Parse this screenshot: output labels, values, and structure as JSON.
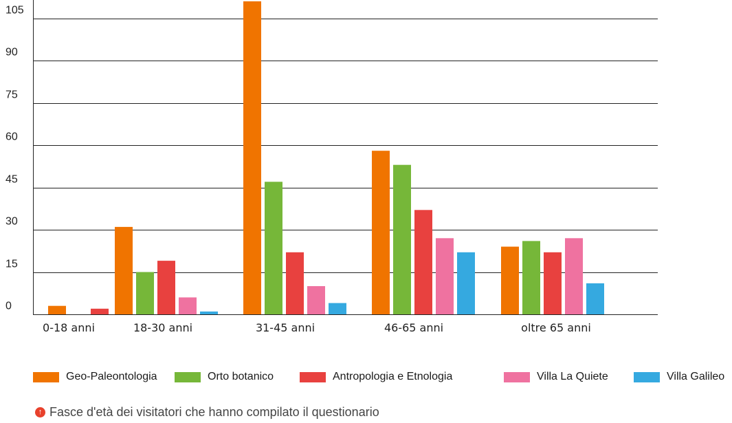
{
  "chart_data": {
    "type": "bar",
    "categories": [
      "0-18 anni",
      "18-30 anni",
      "31-45 anni",
      "46-65 anni",
      "oltre 65 anni"
    ],
    "series": [
      {
        "name": "Geo-Paleontologia",
        "color": "#f07400",
        "values": [
          3,
          31,
          111,
          58,
          24
        ]
      },
      {
        "name": "Orto botanico",
        "color": "#76b739",
        "values": [
          0,
          15,
          47,
          53,
          26
        ]
      },
      {
        "name": "Antropologia e Etnologia",
        "color": "#e8413f",
        "values": [
          2,
          19,
          22,
          37,
          22
        ]
      },
      {
        "name": "Villa La Quiete",
        "color": "#ef72a0",
        "values": [
          0,
          6,
          10,
          27,
          27
        ]
      },
      {
        "name": "Villa Galileo",
        "color": "#35a9e0",
        "values": [
          0,
          1,
          4,
          22,
          11
        ]
      }
    ],
    "yticks": [
      0,
      15,
      30,
      45,
      60,
      75,
      90,
      105
    ],
    "ylim": [
      0,
      111
    ],
    "grid": true,
    "legend_position": "bottom"
  },
  "caption": {
    "icon": "arrow-up-circle-icon",
    "text": "Fasce d'età dei visitatori che hanno compilato il questionario"
  }
}
